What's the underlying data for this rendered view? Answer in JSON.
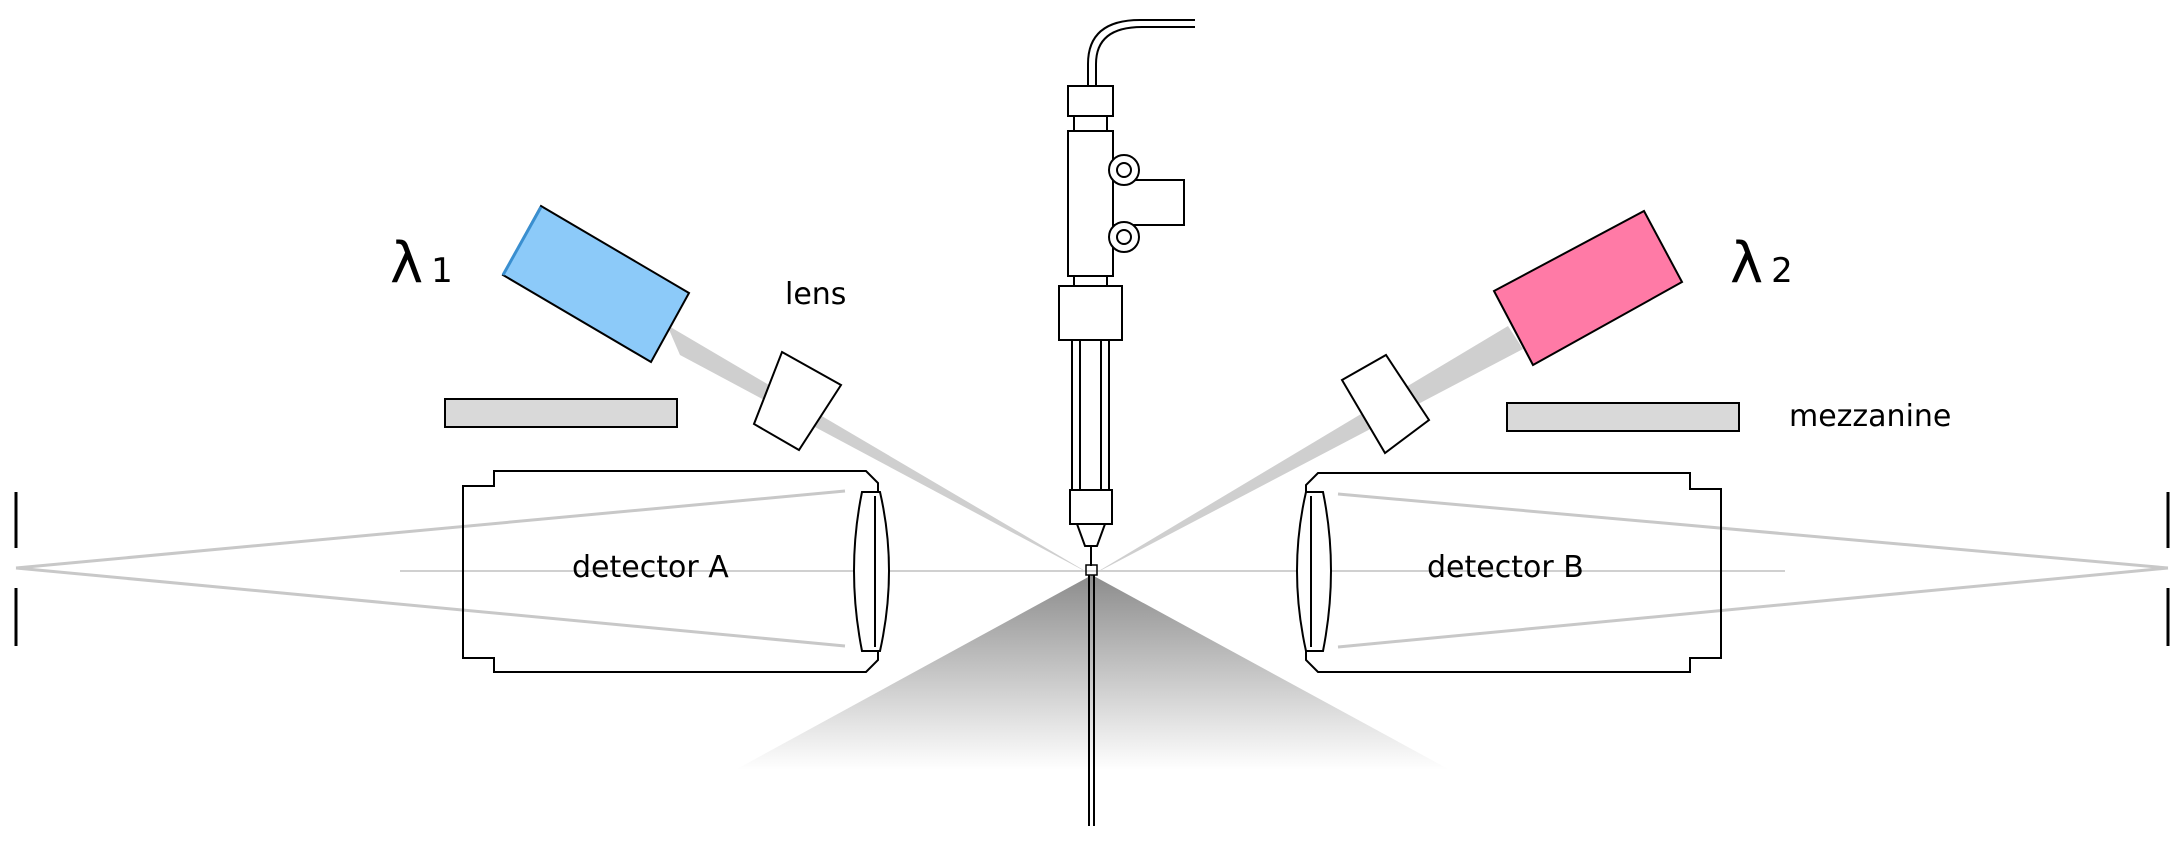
{
  "labels": {
    "lambda1_symbol": "λ",
    "lambda1_sub": "1",
    "lambda2_symbol": "λ",
    "lambda2_sub": "2",
    "lens": "lens",
    "mezzanine": "mezzanine",
    "detector_a": "detector A",
    "detector_b": "detector B"
  },
  "colors": {
    "laser1": "#8ccaf9",
    "laser2": "#ff7aa6",
    "mezzanine": "#d9d9d9",
    "beam": "#cfcfcf"
  }
}
